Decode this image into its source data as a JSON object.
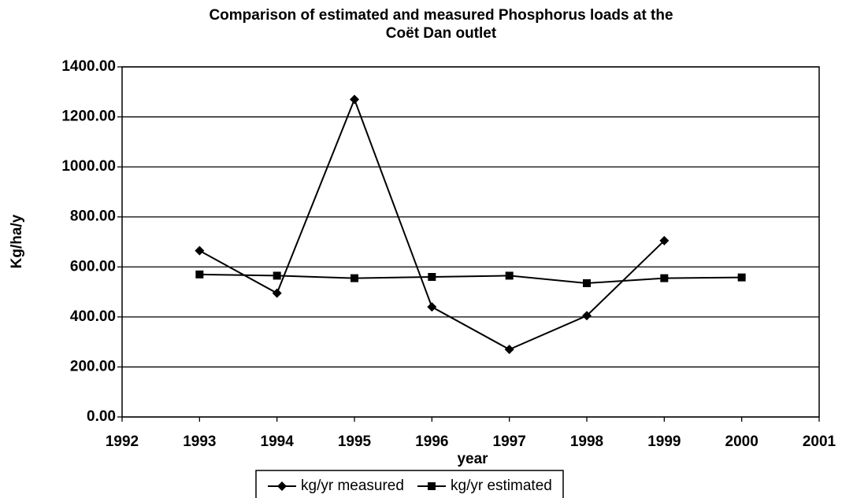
{
  "chart_data": {
    "type": "line",
    "title": [
      "Comparison of estimated and measured Phosphorus loads at the",
      "Coët Dan outlet"
    ],
    "x_label": "year",
    "y_label": "Kg/ha/y",
    "x": [
      1993,
      1994,
      1995,
      1996,
      1997,
      1998,
      1999,
      2000
    ],
    "series": [
      {
        "name": "kg/yr measured",
        "color": "#000000",
        "marker": "diamond",
        "values": [
          665,
          495,
          1270,
          440,
          270,
          405,
          705,
          null
        ]
      },
      {
        "name": "kg/yr estimated",
        "color": "#000000",
        "marker": "square",
        "values": [
          570,
          565,
          555,
          560,
          565,
          535,
          555,
          558
        ]
      }
    ],
    "xlim": [
      1992,
      2001
    ],
    "xticks": [
      1992,
      1993,
      1994,
      1995,
      1996,
      1997,
      1998,
      1999,
      2000,
      2001
    ],
    "ylim": [
      0,
      1400
    ],
    "yticks": [
      {
        "value": 0,
        "label": "0.00"
      },
      {
        "value": 200,
        "label": "200.00"
      },
      {
        "value": 400,
        "label": "400.00"
      },
      {
        "value": 600,
        "label": "600.00"
      },
      {
        "value": 800,
        "label": "800.00"
      },
      {
        "value": 1000,
        "label": "1000.00"
      },
      {
        "value": 1200,
        "label": "1200.00"
      },
      {
        "value": 1400,
        "label": "1400.00"
      }
    ],
    "grid": true,
    "legend": "bottom"
  }
}
